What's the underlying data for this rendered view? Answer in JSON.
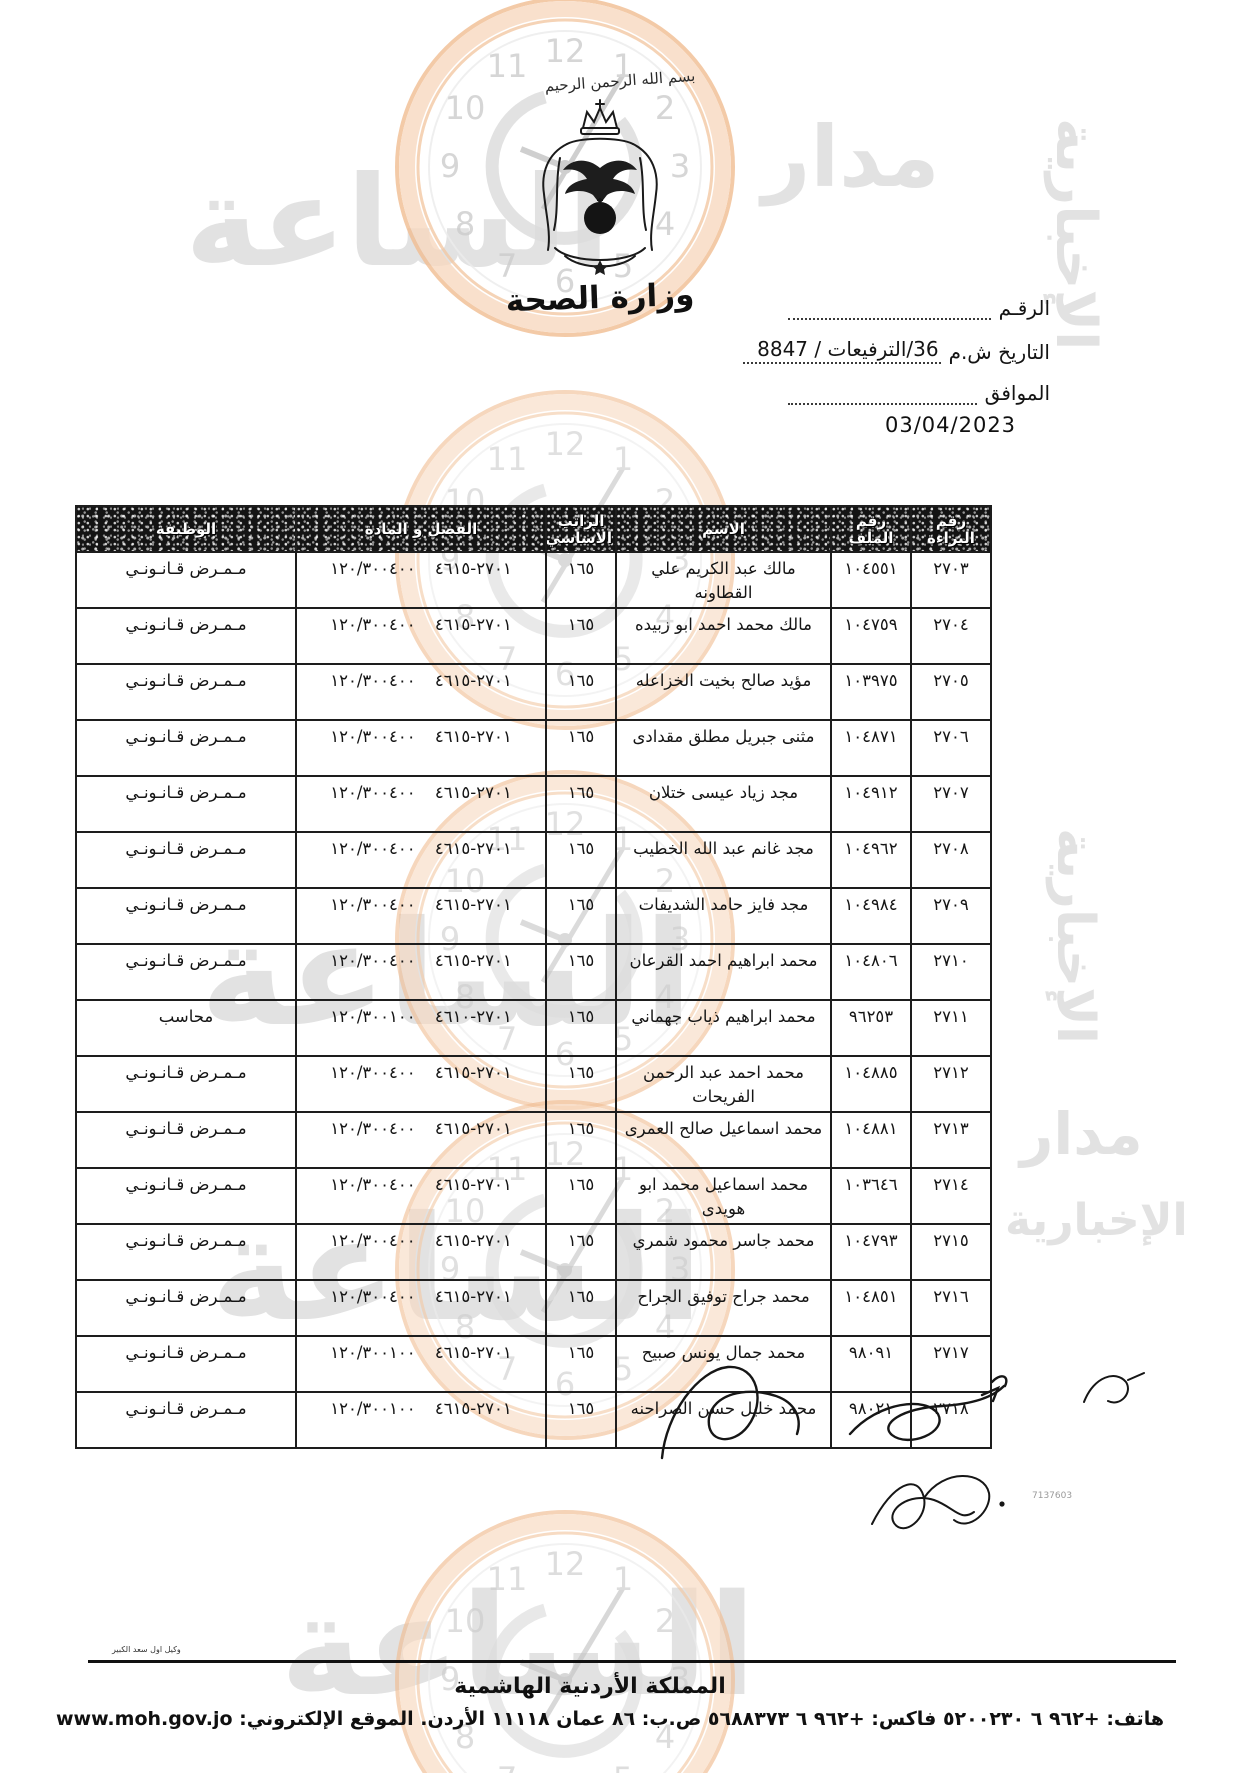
{
  "letterhead": {
    "bismillah": "بسم الله الرحمن الرحيم",
    "ministry_name": "وزارة الصحة"
  },
  "reference": {
    "number_label": "الرقـم",
    "date_label": "التاريخ ش.م",
    "date_value": "36/الترفيعات / 8847",
    "corresponding_label": "الموافق",
    "date_stamp": "03/04/2023"
  },
  "table": {
    "headers": [
      "رقم البراءة",
      "رقم الملف",
      "الاسم",
      "الراتب الاساسي",
      "الفصل و المادة",
      "الوظيفة"
    ],
    "rows": [
      {
        "decree": "٢٧٠٣",
        "file": "١٠٤٥٥١",
        "name": "مالك عبد الكريم علي القطاونه",
        "salary": "١٦٥",
        "chapter": "١٢٠/٣٠٠٤٠٠ ٤٦١٥-٢٧٠١",
        "job": "مـمـرض قـانـونـي"
      },
      {
        "decree": "٢٧٠٤",
        "file": "١٠٤٧٥٩",
        "name": "مالك محمد احمد ابو زبيده",
        "salary": "١٦٥",
        "chapter": "١٢٠/٣٠٠٤٠٠ ٤٦١٥-٢٧٠١",
        "job": "مـمـرض قـانـونـي"
      },
      {
        "decree": "٢٧٠٥",
        "file": "١٠٣٩٧٥",
        "name": "مؤيد صالح بخيت الخزاعله",
        "salary": "١٦٥",
        "chapter": "١٢٠/٣٠٠٤٠٠ ٤٦١٥-٢٧٠١",
        "job": "مـمـرض قـانـونـي"
      },
      {
        "decree": "٢٧٠٦",
        "file": "١٠٤٨٧١",
        "name": "مثنى جبريل مطلق مقدادى",
        "salary": "١٦٥",
        "chapter": "١٢٠/٣٠٠٤٠٠ ٤٦١٥-٢٧٠١",
        "job": "مـمـرض قـانـونـي"
      },
      {
        "decree": "٢٧٠٧",
        "file": "١٠٤٩١٢",
        "name": "مجد زياد عيسى ختلان",
        "salary": "١٦٥",
        "chapter": "١٢٠/٣٠٠٤٠٠ ٤٦١٥-٢٧٠١",
        "job": "مـمـرض قـانـونـي"
      },
      {
        "decree": "٢٧٠٨",
        "file": "١٠٤٩٦٢",
        "name": "مجد غانم عبد الله الخطيب",
        "salary": "١٦٥",
        "chapter": "١٢٠/٣٠٠٤٠٠ ٤٦١٥-٢٧٠١",
        "job": "مـمـرض قـانـونـي"
      },
      {
        "decree": "٢٧٠٩",
        "file": "١٠٤٩٨٤",
        "name": "مجد فايز حامد الشديفات",
        "salary": "١٦٥",
        "chapter": "١٢٠/٣٠٠٤٠٠ ٤٦١٥-٢٧٠١",
        "job": "مـمـرض قـانـونـي"
      },
      {
        "decree": "٢٧١٠",
        "file": "١٠٤٨٠٦",
        "name": "محمد ابراهيم احمد القرعان",
        "salary": "١٦٥",
        "chapter": "١٢٠/٣٠٠٤٠٠ ٤٦١٥-٢٧٠١",
        "job": "مـمـرض قـانـونـي"
      },
      {
        "decree": "٢٧١١",
        "file": "٩٦٢٥٣",
        "name": "محمد ابراهيم ذياب جهماني",
        "salary": "١٦٥",
        "chapter": "١٢٠/٣٠٠١٠٠ ٤٦١٠-٢٧٠١",
        "job": "محاسب"
      },
      {
        "decree": "٢٧١٢",
        "file": "١٠٤٨٨٥",
        "name": "محمد احمد عبد الرحمن الفريحات",
        "salary": "١٦٥",
        "chapter": "١٢٠/٣٠٠٤٠٠ ٤٦١٥-٢٧٠١",
        "job": "مـمـرض قـانـونـي"
      },
      {
        "decree": "٢٧١٣",
        "file": "١٠٤٨٨١",
        "name": "محمد اسماعيل صالح العمرى",
        "salary": "١٦٥",
        "chapter": "١٢٠/٣٠٠٤٠٠ ٤٦١٥-٢٧٠١",
        "job": "مـمـرض قـانـونـي"
      },
      {
        "decree": "٢٧١٤",
        "file": "١٠٣٦٤٦",
        "name": "محمد اسماعيل محمد ابو هويدى",
        "salary": "١٦٥",
        "chapter": "١٢٠/٣٠٠٤٠٠ ٤٦١٥-٢٧٠١",
        "job": "مـمـرض قـانـونـي"
      },
      {
        "decree": "٢٧١٥",
        "file": "١٠٤٧٩٣",
        "name": "محمد جاسر محمود شمري",
        "salary": "١٦٥",
        "chapter": "١٢٠/٣٠٠٤٠٠ ٤٦١٥-٢٧٠١",
        "job": "مـمـرض قـانـونـي"
      },
      {
        "decree": "٢٧١٦",
        "file": "١٠٤٨٥١",
        "name": "محمد جراح توفيق الجراح",
        "salary": "١٦٥",
        "chapter": "١٢٠/٣٠٠٤٠٠ ٤٦١٥-٢٧٠١",
        "job": "مـمـرض قـانـونـي"
      },
      {
        "decree": "٢٧١٧",
        "file": "٩٨٠٩١",
        "name": "محمد جمال يونس صبيح",
        "salary": "١٦٥",
        "chapter": "١٢٠/٣٠٠١٠٠ ٤٦١٥-٢٧٠١",
        "job": "مـمـرض قـانـونـي"
      },
      {
        "decree": "٢٧١٨",
        "file": "٩٨٠٢١",
        "name": "محمد خليل حسن الصراحنه",
        "salary": "١٦٥",
        "chapter": "١٢٠/٣٠٠١٠٠ ٤٦١٥-٢٧٠١",
        "job": "مـمـرض قـانـونـي"
      }
    ]
  },
  "footer": {
    "agent_note": "وكيل اول سعد الكبير",
    "kingdom_name": "المملكة الأردنية الهاشمية",
    "contact_line": "هاتف: +٩٦٢ ٦ ٥٢٠٠٢٣٠ فاكس: +٩٦٢ ٦ ٥٦٨٨٣٧٣ ص.ب: ٨٦ عمان ١١١١٨ الأردن. الموقع الإلكتروني: www.moh.gov.jo",
    "ref_code": "7137603"
  },
  "watermark": {
    "words": {
      "madar": "مدار",
      "saa": "الساعة",
      "akhbariya": "الإخبارية"
    },
    "clock_numbers": [
      "12",
      "1",
      "2",
      "3",
      "4",
      "5",
      "6",
      "7",
      "8",
      "9",
      "10",
      "11"
    ],
    "ring_color": "#f3c9a4",
    "text_color": "#cccccc"
  }
}
